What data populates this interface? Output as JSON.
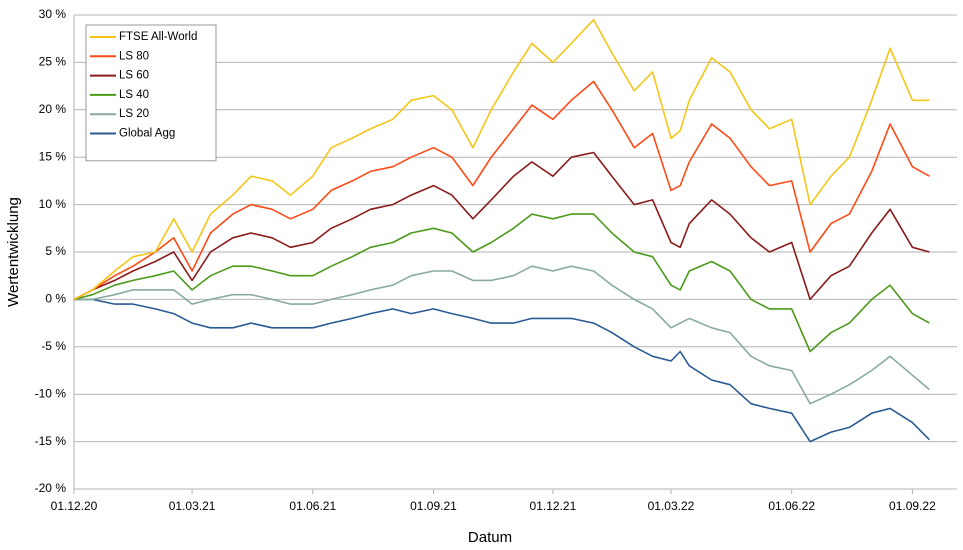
{
  "chart_data": {
    "type": "line",
    "x_label": "Datum",
    "y_label": "Wertentwicklung",
    "x": [
      "2020-12-01",
      "2020-12-15",
      "2021-01-01",
      "2021-01-15",
      "2021-02-01",
      "2021-02-15",
      "2021-03-01",
      "2021-03-15",
      "2021-04-01",
      "2021-04-15",
      "2021-05-01",
      "2021-05-15",
      "2021-06-01",
      "2021-06-15",
      "2021-07-01",
      "2021-07-15",
      "2021-08-01",
      "2021-08-15",
      "2021-09-01",
      "2021-09-15",
      "2021-10-01",
      "2021-10-15",
      "2021-11-01",
      "2021-11-15",
      "2021-12-01",
      "2021-12-15",
      "2022-01-01",
      "2022-01-15",
      "2022-02-01",
      "2022-02-15",
      "2022-03-01",
      "2022-03-08",
      "2022-03-15",
      "2022-04-01",
      "2022-04-15",
      "2022-05-01",
      "2022-05-15",
      "2022-06-01",
      "2022-06-15",
      "2022-07-01",
      "2022-07-15",
      "2022-08-01",
      "2022-08-15",
      "2022-09-01",
      "2022-09-14"
    ],
    "series": [
      {
        "name": "FTSE All-World",
        "color": "#f5c518",
        "values": [
          0,
          1,
          3,
          4.5,
          5,
          8.5,
          5,
          9,
          11,
          13,
          12.5,
          11,
          13,
          16,
          17,
          18,
          19,
          21,
          21.5,
          20,
          16,
          20,
          24,
          27,
          25,
          27,
          29.5,
          26,
          22,
          24,
          17,
          17.8,
          21,
          25.5,
          24,
          20,
          18,
          19,
          10,
          13,
          15,
          21,
          26.5,
          21,
          21
        ]
      },
      {
        "name": "LS 80",
        "color": "#ff4a16",
        "values": [
          0,
          1,
          2.5,
          3.5,
          5,
          6.5,
          3,
          7,
          9,
          10,
          9.5,
          8.5,
          9.5,
          11.5,
          12.5,
          13.5,
          14,
          15,
          16,
          15,
          12,
          15,
          18,
          20.5,
          19,
          21,
          23,
          20,
          16,
          17.5,
          11.5,
          12,
          14.5,
          18.5,
          17,
          14,
          12,
          12.5,
          5,
          8,
          9,
          13.5,
          18.5,
          14,
          13
        ]
      },
      {
        "name": "LS 60",
        "color": "#8b1a1a",
        "values": [
          0,
          1,
          2,
          3,
          4,
          5,
          2,
          5,
          6.5,
          7,
          6.5,
          5.5,
          6,
          7.5,
          8.5,
          9.5,
          10,
          11,
          12,
          11,
          8.5,
          10.5,
          13,
          14.5,
          13,
          15,
          15.5,
          13,
          10,
          10.5,
          6,
          5.5,
          8,
          10.5,
          9,
          6.5,
          5,
          6,
          0,
          2.5,
          3.5,
          7,
          9.5,
          5.5,
          5
        ]
      },
      {
        "name": "LS 40",
        "color": "#4c9a1a",
        "values": [
          0,
          0.5,
          1.5,
          2,
          2.5,
          3,
          1,
          2.5,
          3.5,
          3.5,
          3,
          2.5,
          2.5,
          3.5,
          4.5,
          5.5,
          6,
          7,
          7.5,
          7,
          5,
          6,
          7.5,
          9,
          8.5,
          9,
          9,
          7,
          5,
          4.5,
          1.5,
          1,
          3,
          4,
          3,
          0,
          -1,
          -1,
          -5.5,
          -3.5,
          -2.5,
          0,
          1.5,
          -1.5,
          -2.5
        ]
      },
      {
        "name": "LS 20",
        "color": "#88aaa0",
        "values": [
          0,
          0,
          0.5,
          1,
          1,
          1,
          -0.5,
          0,
          0.5,
          0.5,
          0,
          -0.5,
          -0.5,
          0,
          0.5,
          1,
          1.5,
          2.5,
          3,
          3,
          2,
          2,
          2.5,
          3.5,
          3,
          3.5,
          3,
          1.5,
          0,
          -1,
          -3,
          -2.5,
          -2,
          -3,
          -3.5,
          -6,
          -7,
          -7.5,
          -11,
          -10,
          -9,
          -7.5,
          -6,
          -8,
          -9.5
        ]
      },
      {
        "name": "Global Agg",
        "color": "#2a5a94",
        "values": [
          0,
          0,
          -0.5,
          -0.5,
          -1,
          -1.5,
          -2.5,
          -3,
          -3,
          -2.5,
          -3,
          -3,
          -3,
          -2.5,
          -2,
          -1.5,
          -1,
          -1.5,
          -1,
          -1.5,
          -2,
          -2.5,
          -2.5,
          -2,
          -2,
          -2,
          -2.5,
          -3.5,
          -5,
          -6,
          -6.5,
          -5.5,
          -7,
          -8.5,
          -9,
          -11,
          -11.5,
          -12,
          -15,
          -14,
          -13.5,
          -12,
          -11.5,
          -13,
          -14.8
        ]
      }
    ],
    "xlim": [
      "2020-12-01",
      "2022-10-05"
    ],
    "xticks": [
      {
        "value": "2020-12-01",
        "label": "01.12.20"
      },
      {
        "value": "2021-03-01",
        "label": "01.03.21"
      },
      {
        "value": "2021-06-01",
        "label": "01.06.21"
      },
      {
        "value": "2021-09-01",
        "label": "01.09.21"
      },
      {
        "value": "2021-12-01",
        "label": "01.12.21"
      },
      {
        "value": "2022-03-01",
        "label": "01.03.22"
      },
      {
        "value": "2022-06-01",
        "label": "01.06.22"
      },
      {
        "value": "2022-09-01",
        "label": "01.09.22"
      }
    ],
    "ylim": [
      -20,
      30
    ],
    "yticks": [
      {
        "value": -20,
        "label": "-20 %"
      },
      {
        "value": -15,
        "label": "-15 %"
      },
      {
        "value": -10,
        "label": "-10 %"
      },
      {
        "value": -5,
        "label": "-5 %"
      },
      {
        "value": 0,
        "label": "0 %"
      },
      {
        "value": 5,
        "label": "5 %"
      },
      {
        "value": 10,
        "label": "10 %"
      },
      {
        "value": 15,
        "label": "15 %"
      },
      {
        "value": 20,
        "label": "20 %"
      },
      {
        "value": 25,
        "label": "25 %"
      },
      {
        "value": 30,
        "label": "30 %"
      }
    ],
    "grid": true,
    "legend": "upper left"
  }
}
